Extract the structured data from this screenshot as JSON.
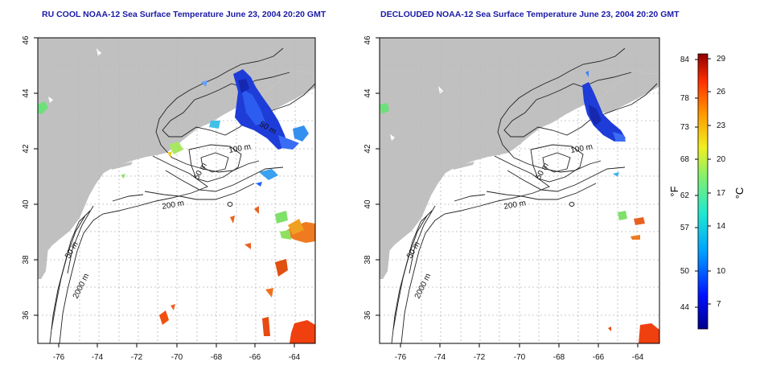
{
  "panels": [
    {
      "title": "RU COOL NOAA-12 Sea Surface Temperature June 23, 2004 20:20 GMT"
    },
    {
      "title": "DECLOUDED NOAA-12 Sea Surface Temperature June 23, 2004 20:20 GMT"
    }
  ],
  "axes": {
    "lon_ticks": [
      "-76",
      "-74",
      "-72",
      "-70",
      "-68",
      "-66",
      "-64"
    ],
    "lat_ticks": [
      "36",
      "38",
      "40",
      "42",
      "44",
      "46"
    ]
  },
  "contour_labels": [
    "50 m",
    "100 m",
    "200 m",
    "2000 m"
  ],
  "colorbar": {
    "f_unit": "°F",
    "c_unit": "°C",
    "f_ticks": [
      "84",
      "78",
      "73",
      "68",
      "62",
      "57",
      "50",
      "44"
    ],
    "c_ticks": [
      "29",
      "26",
      "23",
      "20",
      "17",
      "14",
      "10",
      "7"
    ]
  },
  "colors": {
    "land": "#c0c0c0",
    "ocean": "#ffffff",
    "title": "#1a1aa8",
    "cold": "#1e3cd8",
    "warm": "#e84a10"
  }
}
